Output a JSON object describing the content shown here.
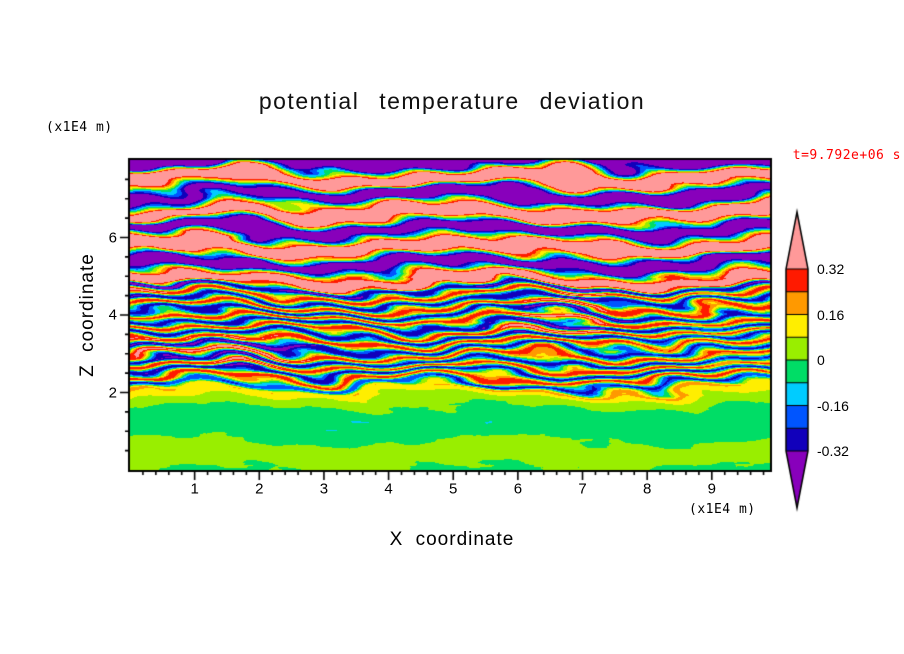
{
  "chart_data": {
    "type": "filled_contour",
    "title": "potential temperature deviation",
    "xlabel": "X coordinate",
    "zlabel": "Z coordinate",
    "x_unit": "(x1E4 m)",
    "z_unit": "(x1E4 m)",
    "time_label": "t=9.792e+06 s",
    "time_color": "#ff0000",
    "xlim": [
      0,
      9.9
    ],
    "zlim": [
      0,
      8
    ],
    "x_ticks": [
      1,
      2,
      3,
      4,
      5,
      6,
      7,
      8,
      9
    ],
    "x_minor_step": 0.2,
    "z_ticks": [
      2,
      4,
      6
    ],
    "z_minor_step": 0.5,
    "colorbar": {
      "levels": [
        -0.32,
        -0.24,
        -0.16,
        -0.08,
        0,
        0.08,
        0.16,
        0.24,
        0.32
      ],
      "colors": [
        "#8800bb",
        "#1100bb",
        "#0055ff",
        "#00ccff",
        "#00dd66",
        "#99ee00",
        "#ffee00",
        "#ff9900",
        "#ff1a00",
        "#ff9999"
      ],
      "labels": [
        "0.32",
        "0.16",
        "0",
        "-0.16",
        "-0.32"
      ],
      "label_values": [
        0.32,
        0.16,
        0,
        -0.16,
        -0.32
      ]
    },
    "field": {
      "description": "Horizontally layered potential-temperature deviation: weak green/yellow-green anomalies below z=2e4 m, fine multicoloured turbulent stripes between z=2e4 and 4.8e4 m, broad saturated pink/purple wave layers above",
      "seed": 7,
      "zones": [
        {
          "z_frac": [
            0.0,
            0.26
          ],
          "amplitude": 0.055,
          "cycles": 5
        },
        {
          "z_frac": [
            0.26,
            0.6
          ],
          "amplitude": 0.3,
          "cycles": 26
        },
        {
          "z_frac": [
            0.6,
            1.0
          ],
          "amplitude": 0.52,
          "cycles": 9
        }
      ]
    }
  }
}
